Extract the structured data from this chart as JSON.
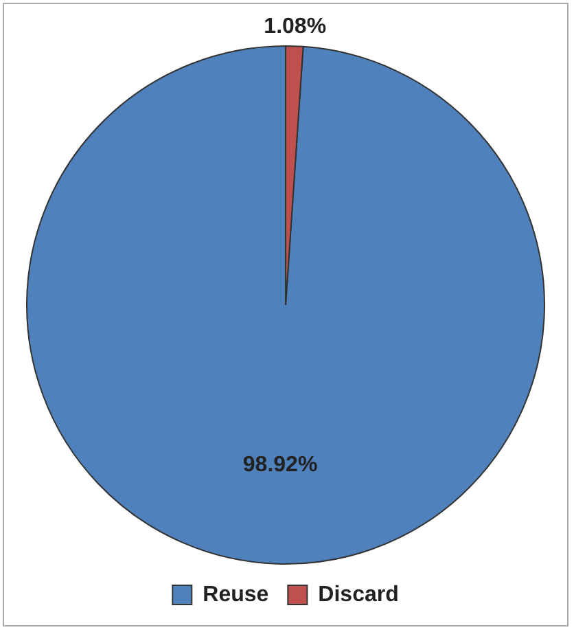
{
  "chart_data": {
    "type": "pie",
    "categories": [
      "Reuse",
      "Discard"
    ],
    "values": [
      98.92,
      1.08
    ],
    "colors": [
      "#4f81bd",
      "#c0504d"
    ],
    "value_labels": [
      "98.92%",
      "1.08%"
    ],
    "legend": "bottom"
  }
}
